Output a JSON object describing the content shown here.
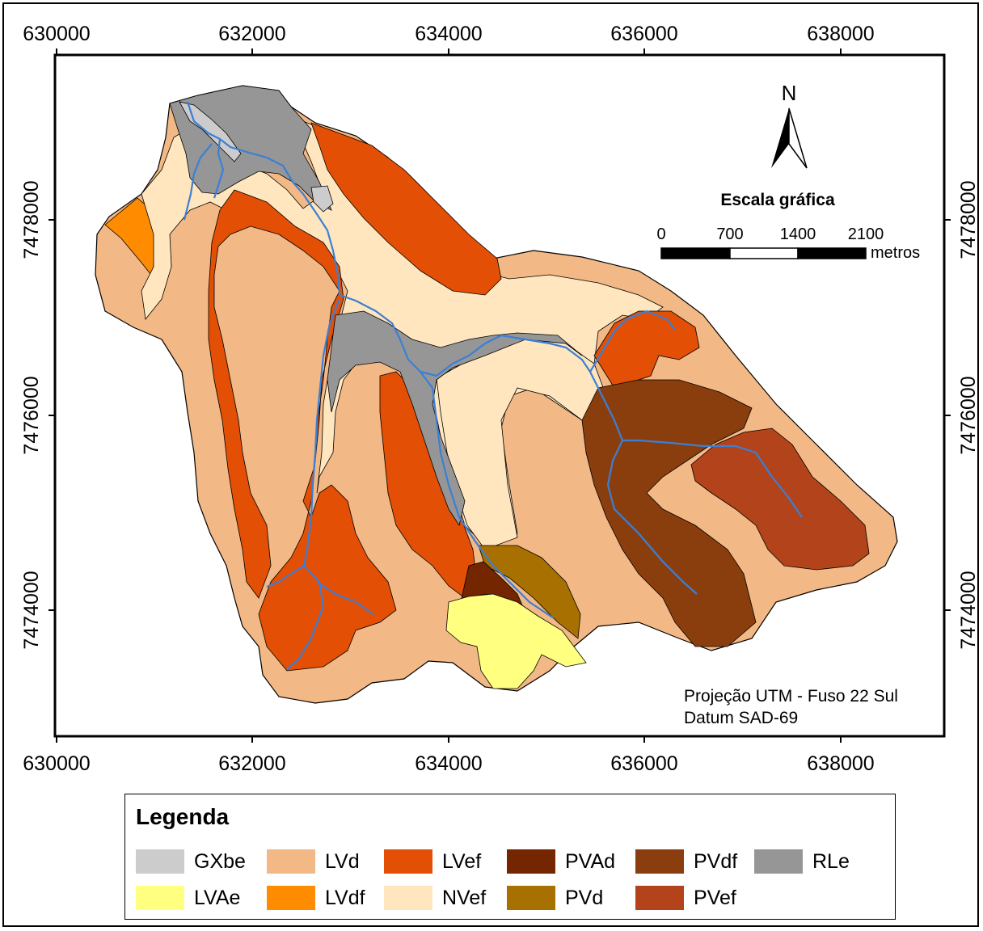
{
  "x_ticks": [
    {
      "value": "630000"
    },
    {
      "value": "632000"
    },
    {
      "value": "634000"
    },
    {
      "value": "636000"
    },
    {
      "value": "638000"
    }
  ],
  "y_ticks": [
    {
      "value": "7478000"
    },
    {
      "value": "7476000"
    },
    {
      "value": "7474000"
    }
  ],
  "north_arrow": {
    "label": "N",
    "icon": "north-arrow-icon"
  },
  "scale_bar": {
    "title": "Escala gráfica",
    "labels": [
      "0",
      "700",
      "1400",
      "2100"
    ],
    "unit": "metros"
  },
  "projection": {
    "line1": "Projeção UTM - Fuso 22 Sul",
    "line2": "Datum SAD-69"
  },
  "legend": {
    "title": "Legenda",
    "items": [
      {
        "label": "GXbe",
        "color": "#cccccc"
      },
      {
        "label": "LVd",
        "color": "#f2b885"
      },
      {
        "label": "LVef",
        "color": "#e34f05"
      },
      {
        "label": "PVAd",
        "color": "#732600"
      },
      {
        "label": "PVdf",
        "color": "#8a3e0e"
      },
      {
        "label": "RLe",
        "color": "#969696"
      },
      {
        "label": "LVAe",
        "color": "#ffff80"
      },
      {
        "label": "LVdf",
        "color": "#ff8c00"
      },
      {
        "label": "NVef",
        "color": "#ffe6bf"
      },
      {
        "label": "PVd",
        "color": "#a87000"
      },
      {
        "label": "PVef",
        "color": "#b3431a"
      }
    ]
  },
  "colors": {
    "river": "#3b7fd6",
    "map_background": "#ffffff",
    "frame": "#000000"
  }
}
